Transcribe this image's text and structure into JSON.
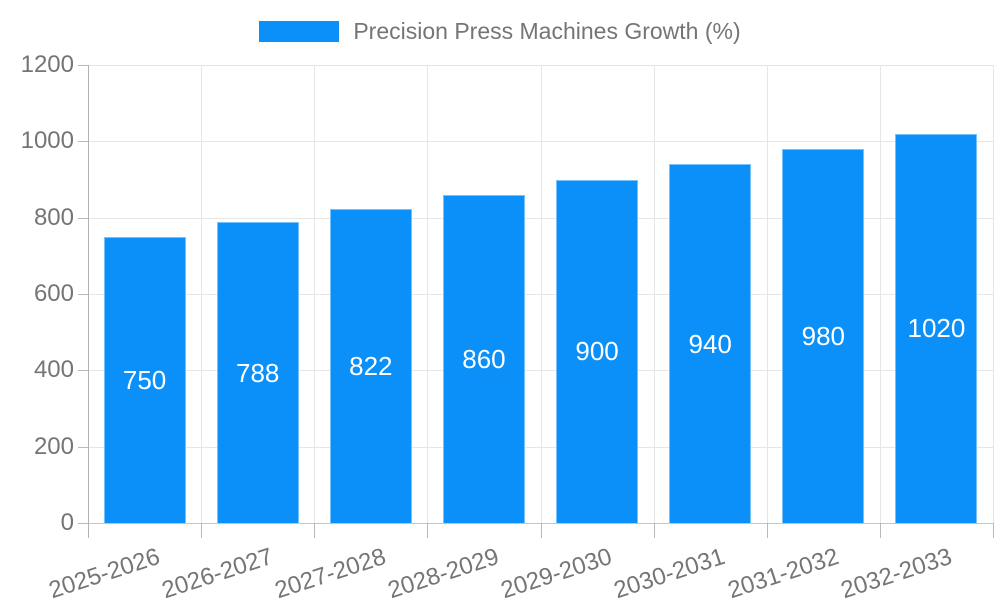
{
  "chart_data": {
    "type": "bar",
    "title": "Precision Press Machines Growth (%)",
    "categories": [
      "2025-2026",
      "2026-2027",
      "2027-2028",
      "2028-2029",
      "2029-2030",
      "2030-2031",
      "2031-2032",
      "2032-2033"
    ],
    "values": [
      750,
      788,
      822,
      860,
      900,
      940,
      980,
      1020
    ],
    "xlabel": "",
    "ylabel": "",
    "ylim": [
      0,
      1200
    ],
    "yticks": [
      0,
      200,
      400,
      600,
      800,
      1000,
      1200
    ],
    "grid": true,
    "legend_position": "top",
    "colors": {
      "bar": "#0a90f8",
      "bar_label": "#ffffff",
      "axis_text": "#757575",
      "gridline": "#e6e6e6",
      "axis_line": "#b3b3b3"
    }
  }
}
